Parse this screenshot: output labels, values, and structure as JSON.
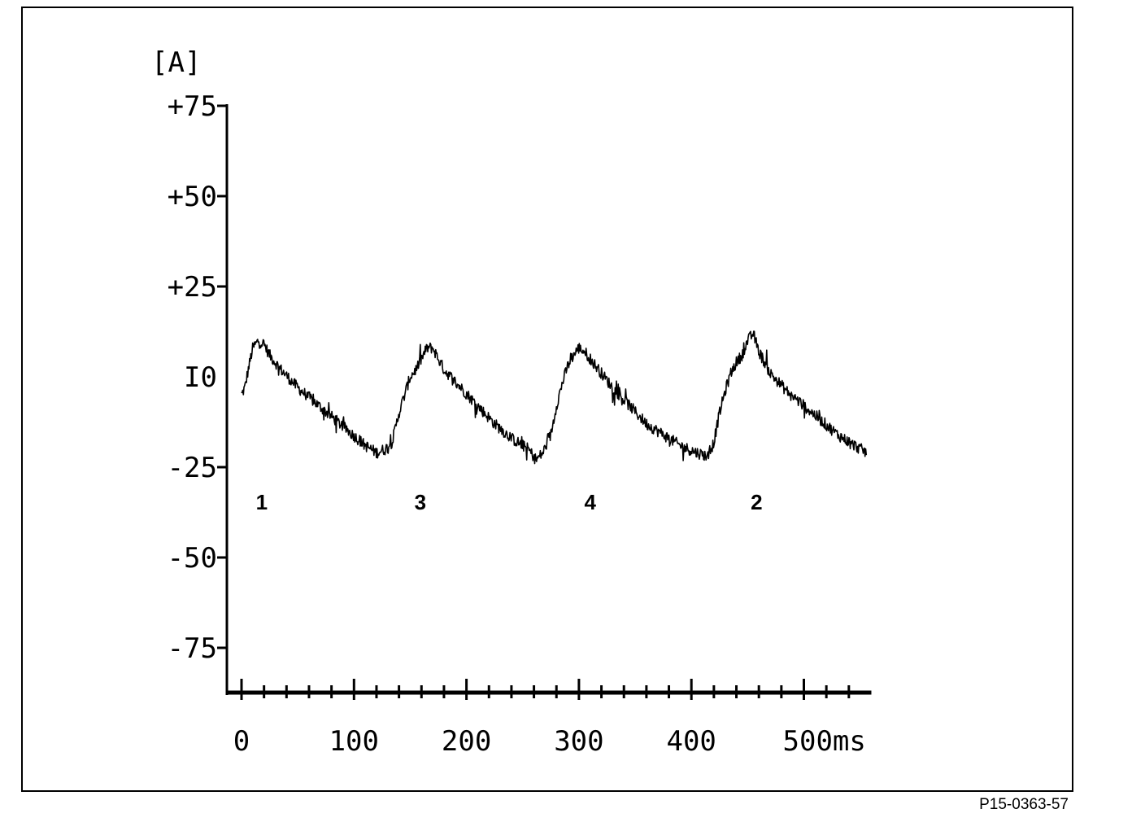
{
  "chart_data": {
    "type": "line",
    "ylabel": "[A]",
    "y_ticks": [
      {
        "value": 75,
        "label": "+75"
      },
      {
        "value": 50,
        "label": "+50"
      },
      {
        "value": 25,
        "label": "+25"
      },
      {
        "value": 0,
        "label": "I0"
      },
      {
        "value": -25,
        "label": "-25"
      },
      {
        "value": -50,
        "label": "-50"
      },
      {
        "value": -75,
        "label": "-75"
      }
    ],
    "x_ticks": [
      {
        "value": 0,
        "label": "0"
      },
      {
        "value": 100,
        "label": "100"
      },
      {
        "value": 200,
        "label": "200"
      },
      {
        "value": 300,
        "label": "300"
      },
      {
        "value": 400,
        "label": "400"
      },
      {
        "value": 500,
        "label": "500ms"
      }
    ],
    "x_minor_step": 20,
    "xlim": [
      0,
      560
    ],
    "ylim": [
      -88,
      75
    ],
    "grid": false,
    "series": [
      {
        "x": [
          0,
          3,
          6,
          10,
          15,
          20,
          25,
          35,
          50,
          65,
          80,
          95,
          110,
          120,
          128,
          134,
          140,
          145,
          150,
          155,
          160,
          165,
          170,
          180,
          195,
          210,
          225,
          240,
          255,
          262,
          268,
          275,
          280,
          285,
          290,
          295,
          300,
          305,
          310,
          315,
          320,
          330,
          345,
          360,
          375,
          390,
          405,
          415,
          420,
          425,
          430,
          435,
          440,
          445,
          450,
          455,
          460,
          470,
          485,
          500,
          515,
          530,
          545,
          556
        ],
        "y": [
          -5,
          -3,
          2,
          8,
          10,
          9,
          6,
          2,
          -3,
          -7,
          -11,
          -15,
          -19,
          -21,
          -20,
          -18,
          -10,
          -5,
          0,
          2,
          5,
          8,
          8,
          2,
          -3,
          -8,
          -13,
          -17,
          -20,
          -23,
          -21,
          -16,
          -8,
          -2,
          3,
          6,
          8,
          7,
          5,
          3,
          1,
          -3,
          -8,
          -13,
          -16,
          -19,
          -21,
          -22,
          -18,
          -10,
          -4,
          1,
          4,
          6,
          10,
          12,
          7,
          1,
          -4,
          -8,
          -12,
          -16,
          -19,
          -21
        ]
      }
    ],
    "peak_labels": [
      {
        "text": "1",
        "x": 18
      },
      {
        "text": "3",
        "x": 159
      },
      {
        "text": "4",
        "x": 310
      },
      {
        "text": "2",
        "x": 458
      }
    ]
  },
  "figure_ref": "P15-0363-57"
}
